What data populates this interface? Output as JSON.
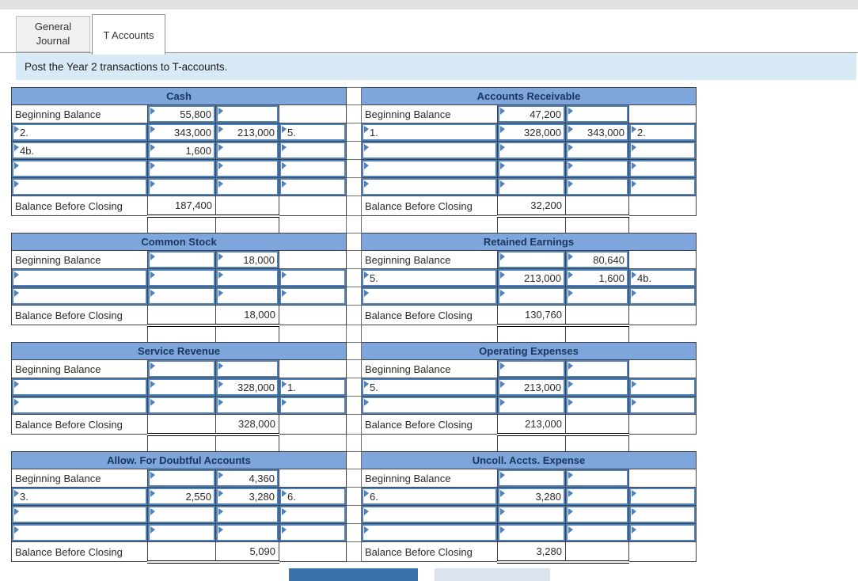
{
  "tabs": [
    {
      "label": "General Journal",
      "active": false
    },
    {
      "label": "T Accounts",
      "active": true
    }
  ],
  "instruction": "Post the Year 2 transactions to T-accounts.",
  "strings": {
    "beginning_balance": "Beginning Balance",
    "balance_before_closing": "Balance Before Closing"
  },
  "colors": {
    "topbar-gray": "#E0E0E0",
    "instruction-bg": "#D9EAF7",
    "header-blue": "#7EA6DC",
    "header-text": "#17375D",
    "input-blue": "#4F81BD",
    "btn-dark": "#3A72AE",
    "btn-light": "#DBE3EE"
  },
  "t_accounts": {
    "pairs": [
      {
        "trailing": true,
        "left": {
          "title": "Cash",
          "rows": [
            {
              "label": "Beginning Balance",
              "debit": "55,800",
              "credit": "",
              "rlabel": ""
            },
            {
              "label": "2.",
              "debit": "343,000",
              "credit": "213,000",
              "rlabel": "5."
            },
            {
              "label": "4b.",
              "debit": "1,600",
              "credit": "",
              "rlabel": ""
            },
            {
              "label": "",
              "debit": "",
              "credit": "",
              "rlabel": ""
            },
            {
              "label": "",
              "debit": "",
              "credit": "",
              "rlabel": ""
            }
          ],
          "balance": {
            "debit": "187,400",
            "credit": ""
          }
        },
        "right": {
          "title": "Accounts Receivable",
          "rows": [
            {
              "label": "Beginning Balance",
              "debit": "47,200",
              "credit": "",
              "rlabel": ""
            },
            {
              "label": "1.",
              "debit": "328,000",
              "credit": "343,000",
              "rlabel": "2."
            },
            {
              "label": "",
              "debit": "",
              "credit": "",
              "rlabel": ""
            },
            {
              "label": "",
              "debit": "",
              "credit": "",
              "rlabel": ""
            },
            {
              "label": "",
              "debit": "",
              "credit": "",
              "rlabel": ""
            }
          ],
          "balance": {
            "debit": "32,200",
            "credit": ""
          }
        }
      },
      {
        "trailing": true,
        "left": {
          "title": "Common Stock",
          "rows": [
            {
              "label": "Beginning Balance",
              "debit": "",
              "credit": "18,000",
              "rlabel": ""
            },
            {
              "label": "",
              "debit": "",
              "credit": "",
              "rlabel": ""
            },
            {
              "label": "",
              "debit": "",
              "credit": "",
              "rlabel": ""
            }
          ],
          "balance": {
            "debit": "",
            "credit": "18,000"
          }
        },
        "right": {
          "title": "Retained Earnings",
          "rows": [
            {
              "label": "Beginning Balance",
              "debit": "",
              "credit": "80,640",
              "rlabel": ""
            },
            {
              "label": "5.",
              "debit": "213,000",
              "credit": "1,600",
              "rlabel": "4b."
            },
            {
              "label": "",
              "debit": "",
              "credit": "",
              "rlabel": ""
            }
          ],
          "balance": {
            "debit": "130,760",
            "credit": ""
          }
        }
      },
      {
        "trailing": true,
        "left": {
          "title": "Service Revenue",
          "rows": [
            {
              "label": "Beginning Balance",
              "debit": "",
              "credit": "",
              "rlabel": ""
            },
            {
              "label": "",
              "debit": "",
              "credit": "328,000",
              "rlabel": "1."
            },
            {
              "label": "",
              "debit": "",
              "credit": "",
              "rlabel": ""
            }
          ],
          "balance": {
            "debit": "",
            "credit": "328,000"
          }
        },
        "right": {
          "title": "Operating Expenses",
          "rows": [
            {
              "label": "Beginning Balance",
              "debit": "",
              "credit": "",
              "rlabel": ""
            },
            {
              "label": "5.",
              "debit": "213,000",
              "credit": "",
              "rlabel": ""
            },
            {
              "label": "",
              "debit": "",
              "credit": "",
              "rlabel": ""
            }
          ],
          "balance": {
            "debit": "213,000",
            "credit": ""
          }
        }
      },
      {
        "trailing": false,
        "left": {
          "title": "Allow. For Doubtful Accounts",
          "rows": [
            {
              "label": "Beginning Balance",
              "debit": "",
              "credit": "4,360",
              "rlabel": ""
            },
            {
              "label": "3.",
              "debit": "2,550",
              "credit": "3,280",
              "rlabel": "6."
            },
            {
              "label": "",
              "debit": "",
              "credit": "",
              "rlabel": ""
            },
            {
              "label": "",
              "debit": "",
              "credit": "",
              "rlabel": ""
            }
          ],
          "balance": {
            "debit": "",
            "credit": "5,090"
          }
        },
        "right": {
          "title": "Uncoll. Accts. Expense",
          "rows": [
            {
              "label": "Beginning Balance",
              "debit": "",
              "credit": "",
              "rlabel": ""
            },
            {
              "label": "6.",
              "debit": "3,280",
              "credit": "",
              "rlabel": ""
            },
            {
              "label": "",
              "debit": "",
              "credit": "",
              "rlabel": ""
            },
            {
              "label": "",
              "debit": "",
              "credit": "",
              "rlabel": ""
            }
          ],
          "balance": {
            "debit": "3,280",
            "credit": ""
          }
        }
      }
    ]
  }
}
